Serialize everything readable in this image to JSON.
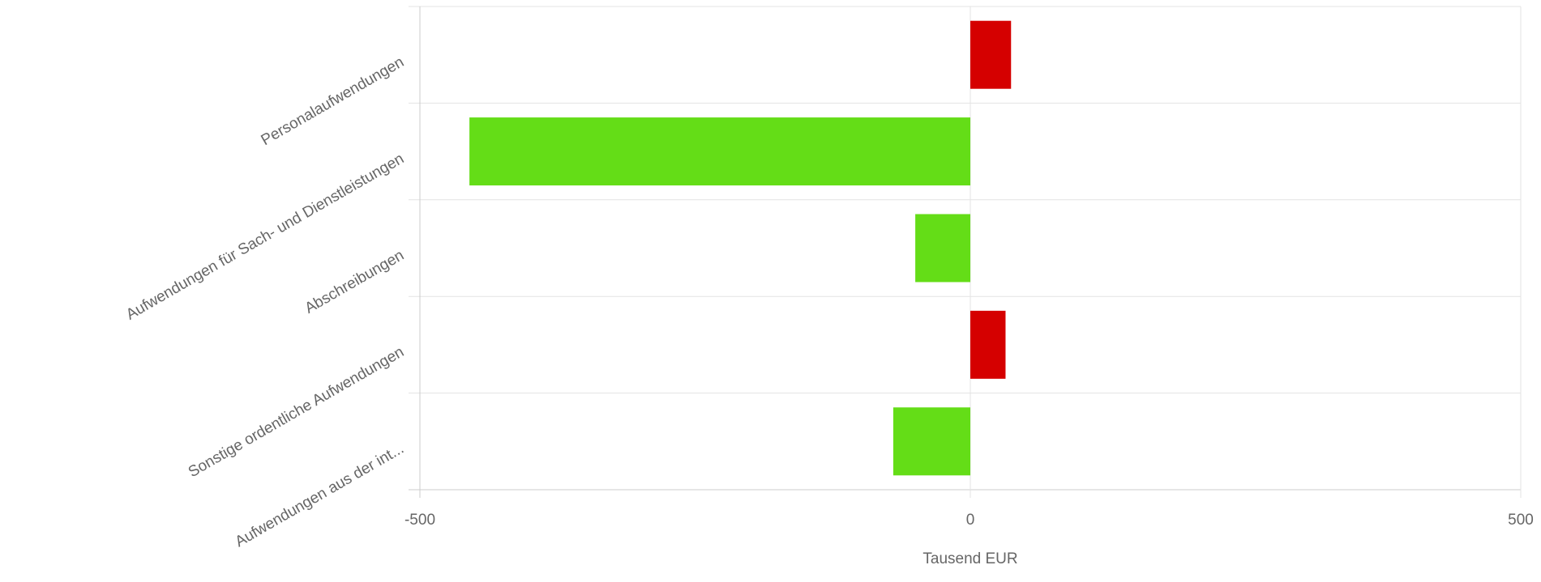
{
  "chart_data": {
    "type": "hbar",
    "categories": [
      "Personalaufwendungen",
      "Aufwendungen für Sach- und Dienstleistungen",
      "Abschreibungen",
      "Sonstige ordentliche Aufwendungen",
      "Aufwendungen aus der int..."
    ],
    "values": [
      37,
      -455,
      -50,
      32,
      -70
    ],
    "colors": [
      "#d50000",
      "#64dd17",
      "#64dd17",
      "#d50000",
      "#64dd17"
    ],
    "xlabel": "Tausend EUR",
    "xlim": [
      -500,
      500
    ],
    "xticks": [
      -500,
      0,
      500
    ],
    "grid": true
  }
}
